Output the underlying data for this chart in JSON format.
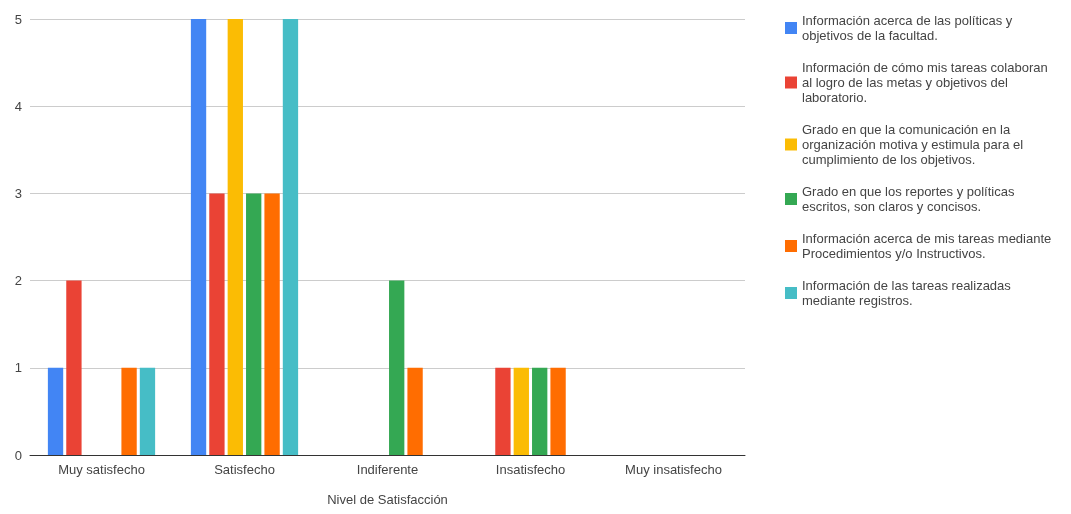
{
  "chart_data": {
    "type": "bar",
    "xlabel": "Nivel de Satisfacción",
    "categories": [
      "Muy satisfecho",
      "Satisfecho",
      "Indiferente",
      "Insatisfecho",
      "Muy insatisfecho"
    ],
    "series": [
      {
        "name": "Información acerca de las políticas y objetivos de la facultad.",
        "color": "#4285f4",
        "values": [
          1,
          5,
          0,
          0,
          0
        ]
      },
      {
        "name": "Información de cómo mis tareas colaboran al logro de las metas y objetivos del laboratorio.",
        "color": "#ea4335",
        "values": [
          2,
          3,
          0,
          1,
          0
        ]
      },
      {
        "name": "Grado en que la comunicación en la organización motiva y estimula para el cumplimiento de los objetivos.",
        "color": "#fbbc04",
        "values": [
          0,
          5,
          0,
          1,
          0
        ]
      },
      {
        "name": "Grado en que los reportes y políticas escritos, son claros y concisos.",
        "color": "#34a853",
        "values": [
          0,
          3,
          2,
          1,
          0
        ]
      },
      {
        "name": "Información acerca de mis tareas mediante Procedimientos y/o Instructivos.",
        "color": "#ff6d01",
        "values": [
          1,
          3,
          1,
          1,
          0
        ]
      },
      {
        "name": "Información de las tareas realizadas mediante registros.",
        "color": "#46bdc6",
        "values": [
          1,
          5,
          0,
          0,
          0
        ]
      }
    ],
    "ylim": [
      0,
      5
    ],
    "yticks": [
      0,
      1,
      2,
      3,
      4,
      5
    ],
    "grid": "y",
    "legend": "right"
  }
}
